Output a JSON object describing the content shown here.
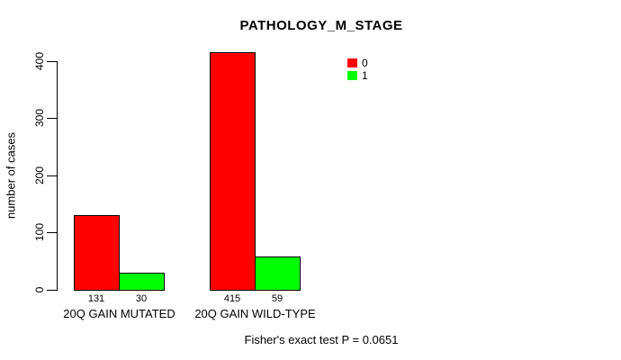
{
  "chart_data": {
    "type": "bar",
    "title": "PATHOLOGY_M_STAGE",
    "ylabel": "number of cases",
    "xlabel": "",
    "categories": [
      "20Q GAIN MUTATED",
      "20Q GAIN WILD-TYPE"
    ],
    "series": [
      {
        "name": "0",
        "color": "#ff0000",
        "values": [
          131,
          415
        ]
      },
      {
        "name": "1",
        "color": "#00ff00",
        "values": [
          30,
          59
        ]
      }
    ],
    "bar_value_labels": [
      [
        131,
        30
      ],
      [
        415,
        59
      ]
    ],
    "yticks": [
      0,
      100,
      200,
      300,
      400
    ],
    "ylim": [
      0,
      420
    ],
    "grid": false,
    "legend_position": "top-right",
    "annotation": "Fisher's exact test P = 0.0651"
  }
}
